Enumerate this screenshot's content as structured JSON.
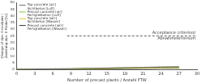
{
  "chart_data": {
    "type": "line",
    "y_label": [
      "Change of dyn. E-modulus /",
      "Änderung dyn. E-Modul [%]"
    ],
    "x_label": "Number of precast plants / Anzahl FTW",
    "xlim": [
      0,
      30
    ],
    "xticks": [
      0,
      3,
      6,
      9,
      12,
      15,
      18,
      21,
      24,
      27,
      30
    ],
    "ylim": [
      0,
      50
    ],
    "yticks": [
      0,
      5,
      10,
      15,
      20,
      25,
      30,
      35,
      40,
      45,
      50
    ],
    "grid": false,
    "legend": "top-left",
    "threshold": {
      "value": 25,
      "label": [
        "Acceptance criterion/",
        "Abnahmekriterium"
      ]
    },
    "x": [
      0,
      3,
      6,
      9,
      12,
      15,
      18,
      21,
      24,
      27
    ],
    "series": [
      {
        "name": "Top concrete [air]\nSichtbeton [Luft]",
        "color": "#6e6e6e",
        "values": [
          0,
          0.2,
          0.4,
          0.5,
          0.8,
          1.0,
          1.3,
          1.5,
          1.8,
          2.0
        ]
      },
      {
        "name": "Precast concrete [air]\nFertigteilbeton [Luft]",
        "color": "#8cc63f",
        "values": [
          0,
          0.1,
          0.3,
          0.4,
          0.6,
          0.9,
          1.1,
          1.4,
          1.6,
          1.7
        ]
      },
      {
        "name": "Top concrete [wtr]\nSichtbeton [Wasser]",
        "color": "#e6c229",
        "values": [
          0,
          0.1,
          0.2,
          0.3,
          0.5,
          0.6,
          0.8,
          1.0,
          1.2,
          1.3
        ]
      },
      {
        "name": "Precast concrete [wtr]\nFertigteilbeton [Wasser]",
        "color": "#333333",
        "values": [
          0,
          0.0,
          0.1,
          0.2,
          0.3,
          0.4,
          0.6,
          0.7,
          0.9,
          1.0
        ]
      }
    ]
  }
}
